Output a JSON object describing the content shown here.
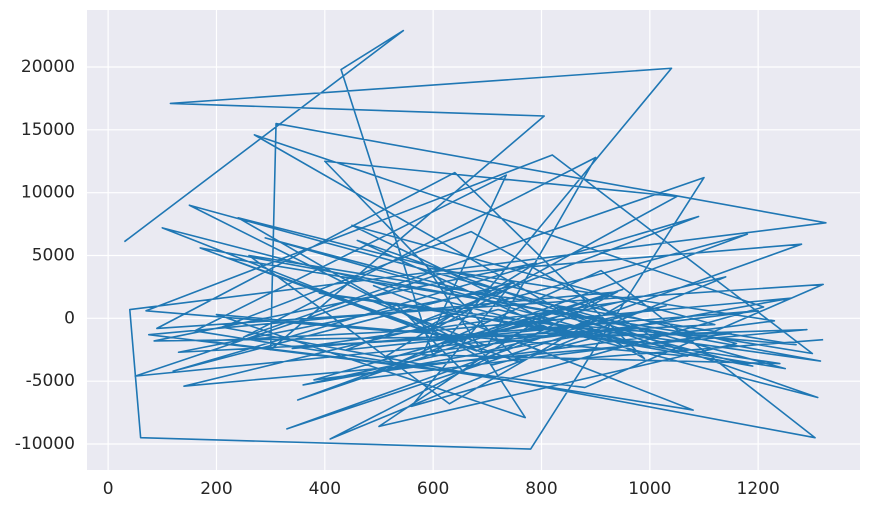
{
  "chart_data": {
    "type": "line",
    "x": [
      30,
      545,
      430,
      600,
      1040,
      115,
      805,
      300,
      310,
      1325,
      40,
      60,
      780,
      1100,
      250,
      900,
      700,
      480,
      1250,
      150,
      650,
      950,
      350,
      1180,
      520,
      70,
      820,
      1300,
      220,
      760,
      400,
      1050,
      600,
      180,
      880,
      1320,
      90,
      640,
      990,
      270,
      1210,
      560,
      740,
      130,
      1120,
      450,
      860,
      330,
      1280,
      610,
      50,
      970,
      710,
      240,
      1160,
      500,
      830,
      1310,
      100,
      680,
      920,
      380,
      1230,
      590,
      770,
      200,
      1070,
      460,
      850,
      1290,
      140,
      720,
      1000,
      290,
      1190,
      530,
      660,
      75,
      940,
      410,
      1140,
      620,
      800,
      1315,
      170,
      690,
      1030,
      360,
      1260,
      570,
      750,
      120,
      1090,
      440,
      870,
      1270,
      260,
      630,
      960,
      340,
      1200,
      510,
      790,
      85,
      1150,
      470,
      910,
      1305,
      210,
      670,
      1010,
      390,
      1240,
      580,
      735,
      160,
      1080,
      490,
      840,
      1320
    ],
    "series": [
      {
        "color": "#1f77b4",
        "values": [
          6100,
          22900,
          19800,
          -3000,
          19900,
          17100,
          16100,
          -2500,
          15500,
          7600,
          700,
          -9500,
          -10400,
          11200,
          -1500,
          12800,
          -2200,
          1500,
          -4000,
          9000,
          -1800,
          2300,
          -6500,
          6700,
          -1000,
          600,
          13000,
          -2800,
          4800,
          -3500,
          12500,
          9700,
          -900,
          -1800,
          -5500,
          2700,
          -800,
          11600,
          -3200,
          14600,
          900,
          -7000,
          2500,
          -2700,
          -500,
          7400,
          -1200,
          -8800,
          5900,
          3500,
          -4600,
          -700,
          -3700,
          8000,
          -2000,
          -8600,
          900,
          -6300,
          7200,
          -2600,
          1800,
          -4900,
          -200,
          4000,
          -7900,
          300,
          -3000,
          6200,
          -1500,
          -900,
          -5400,
          700,
          -2300,
          6400,
          -3800,
          1200,
          -4400,
          -1300,
          2100,
          -9600,
          3300,
          -2000,
          -300,
          -3400,
          5600,
          -2700,
          1000,
          -5300,
          1600,
          -1100,
          2900,
          -4200,
          8100,
          -2500,
          -600,
          -2100,
          5000,
          -6800,
          1400,
          -2400,
          600,
          -3100,
          4400,
          -1800,
          -1200,
          -4800,
          3800,
          -9500,
          -700,
          6900,
          -1600,
          2000,
          -3600,
          -2900,
          11400,
          -1000,
          -7300,
          2600,
          -3300,
          -1700
        ]
      }
    ],
    "xlim": [
      -39,
      1388
    ],
    "ylim": [
      -12069,
      24536
    ],
    "xticks": [
      0,
      200,
      400,
      600,
      800,
      1000,
      1200
    ],
    "yticks": [
      -10000,
      -5000,
      0,
      5000,
      10000,
      15000,
      20000
    ],
    "grid": true
  }
}
